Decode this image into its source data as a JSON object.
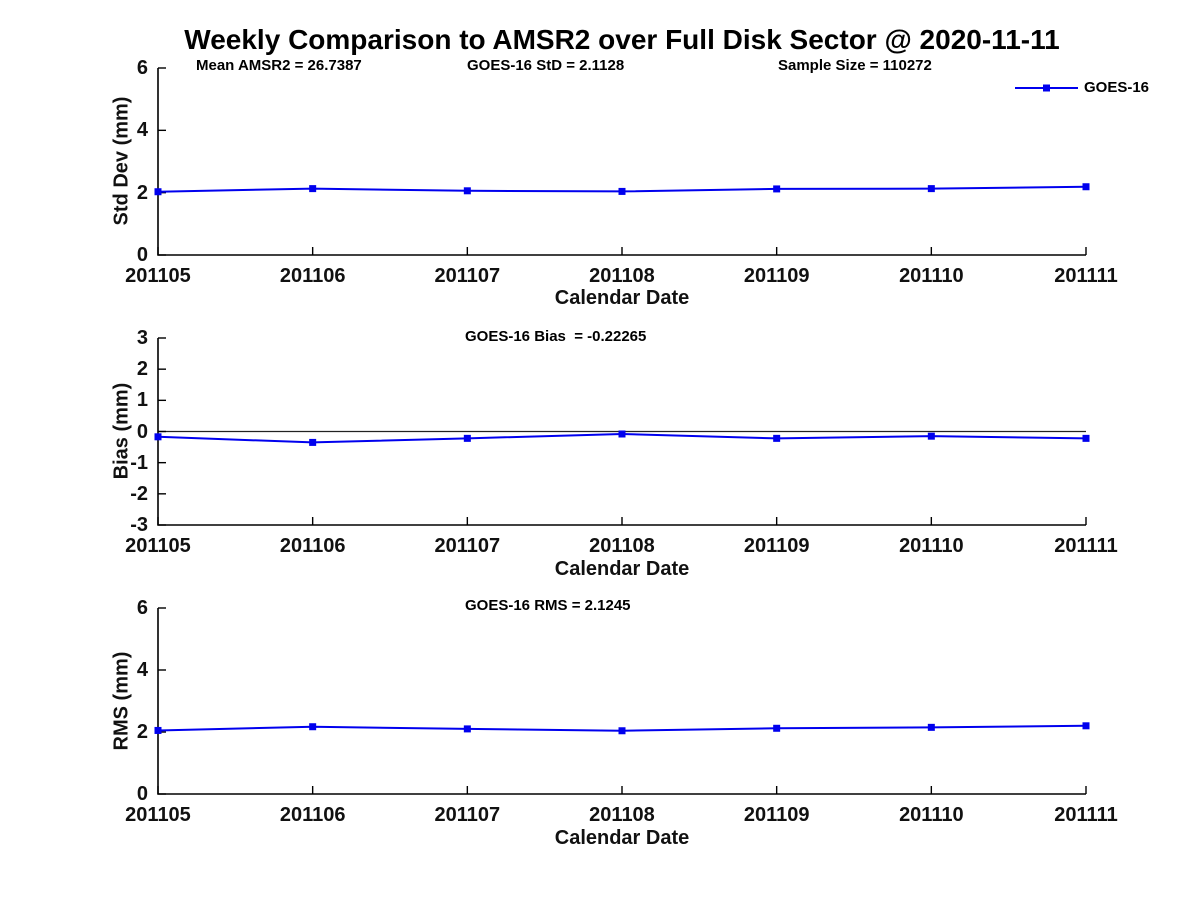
{
  "title": "Weekly Comparison to AMSR2 over Full Disk Sector @ 2020-11-11",
  "legend": {
    "label": "GOES-16",
    "position": "top-right",
    "series_color": "#0000ee"
  },
  "colors": {
    "series": "#0000ee",
    "axis": "#000000",
    "text": "#111111",
    "zero_line": "#222222",
    "background": "#ffffff"
  },
  "categories": [
    "201105",
    "201106",
    "201107",
    "201108",
    "201109",
    "201110",
    "201111"
  ],
  "chart_data": [
    {
      "type": "line",
      "name": "std-dev",
      "ylabel": "Std Dev (mm)",
      "xlabel": "Calendar Date",
      "ylim": [
        0,
        6
      ],
      "yticks": [
        0,
        2,
        4,
        6
      ],
      "categories": [
        "201105",
        "201106",
        "201107",
        "201108",
        "201109",
        "201110",
        "201111"
      ],
      "series": [
        {
          "name": "GOES-16",
          "marker": "square",
          "values": [
            2.03,
            2.13,
            2.06,
            2.04,
            2.12,
            2.13,
            2.19
          ]
        }
      ],
      "annotations": [
        {
          "text": "Mean AMSR2 = 26.7387"
        },
        {
          "text": "GOES-16 StD = 2.1128"
        },
        {
          "text": "Sample Size = 110272"
        }
      ],
      "grid": false,
      "zero_line": false
    },
    {
      "type": "line",
      "name": "bias",
      "ylabel": "Bias (mm)",
      "xlabel": "Calendar Date",
      "ylim": [
        -3,
        3
      ],
      "yticks": [
        -3,
        -2,
        -1,
        0,
        1,
        2,
        3
      ],
      "categories": [
        "201105",
        "201106",
        "201107",
        "201108",
        "201109",
        "201110",
        "201111"
      ],
      "series": [
        {
          "name": "GOES-16",
          "marker": "square",
          "values": [
            -0.17,
            -0.35,
            -0.22,
            -0.08,
            -0.22,
            -0.15,
            -0.22
          ]
        }
      ],
      "annotations": [
        {
          "text": "GOES-16 Bias  = -0.22265"
        }
      ],
      "grid": false,
      "zero_line": true
    },
    {
      "type": "line",
      "name": "rms",
      "ylabel": "RMS (mm)",
      "xlabel": "Calendar Date",
      "ylim": [
        0,
        6
      ],
      "yticks": [
        0,
        2,
        4,
        6
      ],
      "categories": [
        "201105",
        "201106",
        "201107",
        "201108",
        "201109",
        "201110",
        "201111"
      ],
      "series": [
        {
          "name": "GOES-16",
          "marker": "square",
          "values": [
            2.05,
            2.17,
            2.1,
            2.04,
            2.12,
            2.15,
            2.2
          ]
        }
      ],
      "annotations": [
        {
          "text": "GOES-16 RMS = 2.1245"
        }
      ],
      "grid": false,
      "zero_line": false
    }
  ]
}
